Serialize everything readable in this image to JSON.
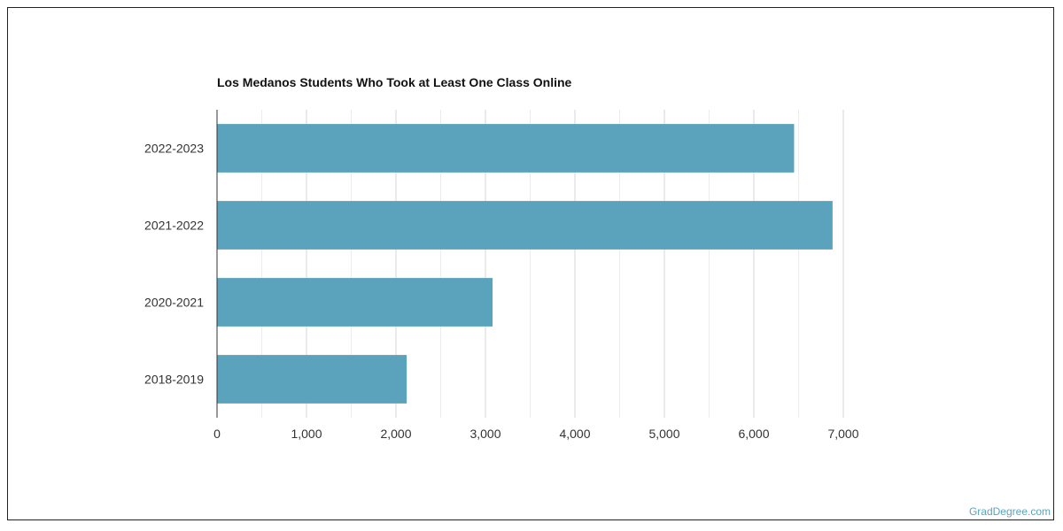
{
  "chart_data": {
    "type": "bar",
    "orientation": "horizontal",
    "title": "Los Medanos Students Who Took at Least One Class Online",
    "categories": [
      "2022-2023",
      "2021-2022",
      "2020-2021",
      "2018-2019"
    ],
    "values": [
      6450,
      6880,
      3080,
      2120
    ],
    "xlim": [
      0,
      7000
    ],
    "xticks": [
      0,
      1000,
      2000,
      3000,
      4000,
      5000,
      6000,
      7000
    ],
    "xtick_labels": [
      "0",
      "1,000",
      "2,000",
      "3,000",
      "4,000",
      "5,000",
      "6,000",
      "7,000"
    ],
    "xlabel": "",
    "ylabel": "",
    "grid": true,
    "bar_color": "#5ba3bd"
  },
  "watermark": "GradDegree.com"
}
